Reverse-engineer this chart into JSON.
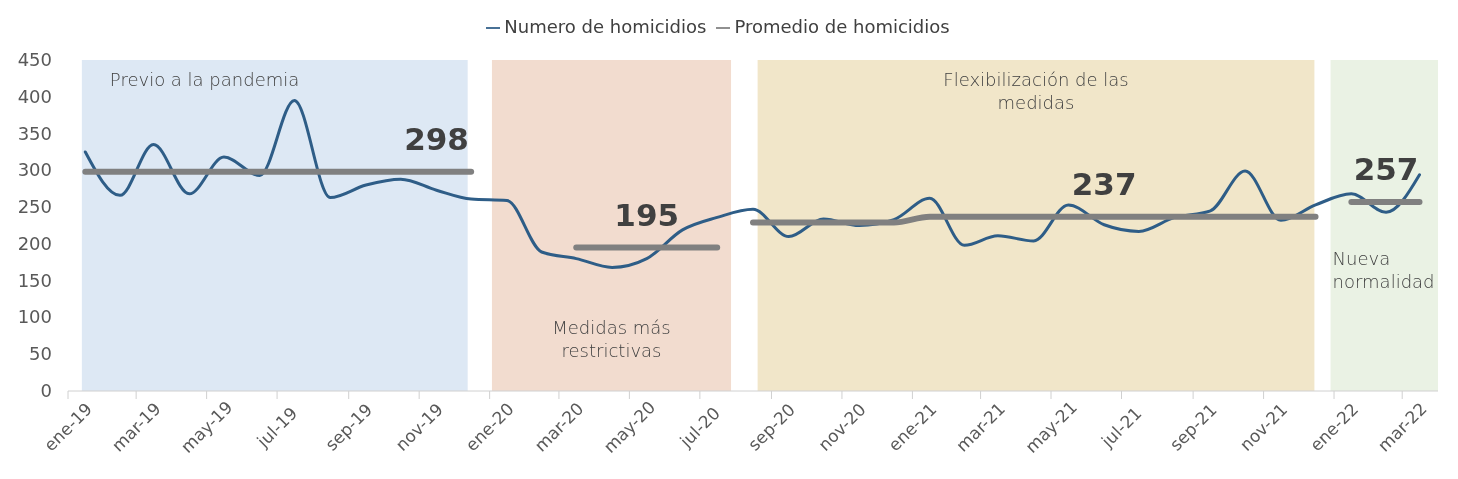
{
  "chart_data": {
    "type": "line",
    "x": [
      "2019-01-16",
      "2019-02-15",
      "2019-03-16",
      "2019-04-16",
      "2019-05-16",
      "2019-06-16",
      "2019-07-16",
      "2019-08-16",
      "2019-09-16",
      "2019-10-16",
      "2019-11-16",
      "2019-12-16",
      "2020-01-16",
      "2020-02-15",
      "2020-03-16",
      "2020-04-16",
      "2020-05-16",
      "2020-06-16",
      "2020-07-16",
      "2020-08-16",
      "2020-09-16",
      "2020-10-16",
      "2020-11-16",
      "2020-12-16",
      "2021-01-16",
      "2021-02-15",
      "2021-03-16",
      "2021-04-16",
      "2021-05-16",
      "2021-06-16",
      "2021-07-16",
      "2021-08-16",
      "2021-09-16",
      "2021-10-16",
      "2021-11-16",
      "2021-12-16",
      "2022-01-16",
      "2022-02-15",
      "2022-03-16"
    ],
    "series": [
      {
        "name": "Numero de homicidios",
        "color": "#2e5d87",
        "values": [
          325,
          266,
          335,
          268,
          318,
          293,
          395,
          263,
          280,
          288,
          273,
          261,
          259,
          189,
          180,
          168,
          180,
          219,
          236,
          247,
          210,
          234,
          225,
          233,
          262,
          198,
          211,
          204,
          253,
          226,
          217,
          236,
          245,
          299,
          232,
          253,
          268,
          243,
          294
        ]
      },
      {
        "name": "Promedio de homicidios",
        "color": "#808080",
        "values": [
          298,
          298,
          298,
          298,
          298,
          298,
          298,
          298,
          298,
          298,
          298,
          298,
          null,
          null,
          null,
          null,
          null,
          null,
          null,
          null,
          null,
          null,
          null,
          null,
          null,
          null,
          null,
          null,
          null,
          null,
          null,
          null,
          null,
          null,
          null,
          null,
          null,
          null,
          null
        ],
        "value_labels": [
          null,
          null,
          null,
          null,
          null,
          null,
          null,
          null,
          null,
          null,
          "298",
          null,
          null,
          null,
          null,
          null,
          null,
          null,
          null,
          null,
          null,
          null,
          null,
          null,
          null,
          null,
          null,
          null,
          null,
          null,
          null,
          null,
          null,
          null,
          null,
          null,
          null,
          null,
          null
        ]
      },
      {
        "color": "#808080",
        "values": [
          null,
          null,
          null,
          null,
          null,
          null,
          null,
          null,
          null,
          null,
          null,
          null,
          null,
          null,
          195,
          195,
          195,
          195,
          195,
          null,
          null,
          null,
          null,
          null,
          null,
          null,
          null,
          null,
          null,
          null,
          null,
          null,
          null,
          null,
          null,
          null,
          null,
          null,
          null
        ],
        "value_labels": [
          null,
          null,
          null,
          null,
          null,
          null,
          null,
          null,
          null,
          null,
          null,
          null,
          null,
          null,
          null,
          null,
          "195",
          null,
          null,
          null,
          null,
          null,
          null,
          null,
          null,
          null,
          null,
          null,
          null,
          null,
          null,
          null,
          null,
          null,
          null,
          null,
          null,
          null,
          null
        ]
      },
      {
        "color": "#808080",
        "values": [
          null,
          null,
          null,
          null,
          null,
          null,
          null,
          null,
          null,
          null,
          null,
          null,
          null,
          null,
          null,
          null,
          null,
          null,
          null,
          229,
          229,
          229,
          229,
          229,
          237,
          237,
          237,
          237,
          237,
          237,
          237,
          237,
          237,
          237,
          237,
          237,
          null,
          null,
          null
        ],
        "value_labels": [
          null,
          null,
          null,
          null,
          null,
          null,
          null,
          null,
          null,
          null,
          null,
          null,
          null,
          null,
          null,
          null,
          null,
          null,
          null,
          null,
          null,
          null,
          null,
          null,
          null,
          null,
          null,
          null,
          null,
          "237",
          null,
          null,
          null,
          null,
          null,
          null,
          null,
          null,
          null
        ]
      },
      {
        "color": "#808080",
        "values": [
          null,
          null,
          null,
          null,
          null,
          null,
          null,
          null,
          null,
          null,
          null,
          null,
          null,
          null,
          null,
          null,
          null,
          null,
          null,
          null,
          null,
          null,
          null,
          null,
          null,
          null,
          null,
          null,
          null,
          null,
          null,
          null,
          null,
          null,
          null,
          null,
          257,
          257,
          257
        ],
        "value_labels": [
          null,
          null,
          null,
          null,
          null,
          null,
          null,
          null,
          null,
          null,
          null,
          null,
          null,
          null,
          null,
          null,
          null,
          null,
          null,
          null,
          null,
          null,
          null,
          null,
          null,
          null,
          null,
          null,
          null,
          null,
          null,
          null,
          null,
          null,
          null,
          null,
          null,
          "257",
          null
        ]
      }
    ],
    "xlim": [
      "2019-01-01",
      "2022-04-01"
    ],
    "xticks": [
      {
        "value": "2019-01-01",
        "label": "ene-19"
      },
      {
        "value": "2019-03-01",
        "label": "mar-19"
      },
      {
        "value": "2019-05-01",
        "label": "may-19"
      },
      {
        "value": "2019-07-01",
        "label": "jul-19"
      },
      {
        "value": "2019-09-01",
        "label": "sep-19"
      },
      {
        "value": "2019-11-01",
        "label": "nov-19"
      },
      {
        "value": "2020-01-01",
        "label": "ene-20"
      },
      {
        "value": "2020-03-01",
        "label": "mar-20"
      },
      {
        "value": "2020-05-01",
        "label": "may-20"
      },
      {
        "value": "2020-07-01",
        "label": "jul-20"
      },
      {
        "value": "2020-09-01",
        "label": "sep-20"
      },
      {
        "value": "2020-11-01",
        "label": "nov-20"
      },
      {
        "value": "2021-01-01",
        "label": "ene-21"
      },
      {
        "value": "2021-03-01",
        "label": "mar-21"
      },
      {
        "value": "2021-05-01",
        "label": "may-21"
      },
      {
        "value": "2021-07-01",
        "label": "jul-21"
      },
      {
        "value": "2021-09-01",
        "label": "sep-21"
      },
      {
        "value": "2021-11-01",
        "label": "nov-21"
      },
      {
        "value": "2022-01-01",
        "label": "ene-22"
      },
      {
        "value": "2022-03-01",
        "label": "mar-22"
      }
    ],
    "ylim": [
      0,
      450
    ],
    "yticks": [
      0,
      50,
      100,
      150,
      200,
      250,
      300,
      350,
      400,
      450
    ],
    "bands": [
      {
        "axis": "x",
        "from": "2019-01-13",
        "to": "2019-12-13",
        "label": "Previo a la pandemia",
        "color": "#dde8f4"
      },
      {
        "axis": "x",
        "from": "2020-01-03",
        "to": "2020-07-28",
        "label": "Medidas más restrictivas",
        "color": "#f2dccf"
      },
      {
        "axis": "x",
        "from": "2020-08-20",
        "to": "2021-12-15",
        "label": "Flexibilización de las medidas",
        "color": "#f1e6c9"
      },
      {
        "axis": "x",
        "from": "2021-12-29",
        "to": "2022-04-01",
        "label": "Nueva normalidad",
        "color": "#eaf2e4"
      }
    ],
    "grid": false,
    "legend": "top",
    "marker": "none",
    "line_style": "solid"
  }
}
